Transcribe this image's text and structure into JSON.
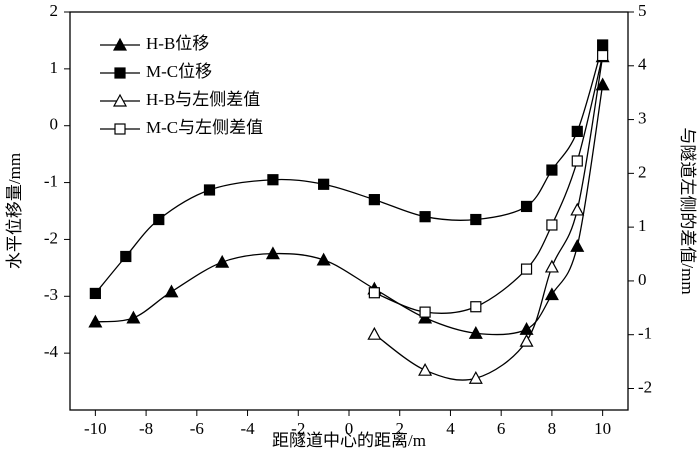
{
  "chart_data": {
    "type": "line",
    "xlabel": "距隧道中心的距离/m",
    "ylabel": "水平位移量/mm",
    "y2label": "与隧道左侧的差值/mm",
    "xlim": [
      -11,
      11
    ],
    "xticks": [
      -10,
      -8,
      -6,
      -4,
      -2,
      0,
      2,
      4,
      6,
      8,
      10
    ],
    "ylim": [
      -5,
      2
    ],
    "yticks": [
      -4,
      -3,
      -2,
      -1,
      0,
      1,
      2
    ],
    "y2lim": [
      -2.4,
      5
    ],
    "y2ticks": [
      -2,
      -1,
      0,
      1,
      2,
      3,
      4,
      5
    ],
    "legend": "upper left",
    "color": "#000000",
    "series": [
      {
        "name": "H-B位移",
        "marker": "triangle",
        "filled": true,
        "x": [
          -10,
          -8.5,
          -7,
          -5,
          -3,
          -1,
          1,
          3,
          5,
          7,
          8,
          9,
          10
        ],
        "values": [
          -3.45,
          -3.38,
          -2.92,
          -2.4,
          -2.25,
          -2.36,
          -2.87,
          -3.38,
          -3.65,
          -3.58,
          -2.97,
          -2.12,
          0.72
        ]
      },
      {
        "name": "M-C位移",
        "marker": "square",
        "filled": true,
        "x": [
          -10,
          -8.8,
          -7.5,
          -5.5,
          -3,
          -1,
          1,
          3,
          5,
          7,
          8,
          9,
          10
        ],
        "values": [
          -2.95,
          -2.3,
          -1.65,
          -1.13,
          -0.95,
          -1.03,
          -1.3,
          -1.6,
          -1.65,
          -1.42,
          -0.78,
          -0.1,
          1.42
        ]
      },
      {
        "name": "H-B与左侧差值",
        "marker": "triangle",
        "filled": false,
        "axis": "y2",
        "x": [
          1,
          3,
          5,
          7,
          8,
          9,
          10
        ],
        "values": [
          -0.99,
          -1.66,
          -1.81,
          -1.12,
          0.26,
          1.32,
          4.17
        ]
      },
      {
        "name": "M-C与左侧差值",
        "marker": "square",
        "filled": false,
        "axis": "y2",
        "x": [
          1,
          3,
          5,
          7,
          8,
          9,
          10
        ],
        "values": [
          -0.22,
          -0.58,
          -0.48,
          0.22,
          1.04,
          2.23,
          4.19
        ]
      }
    ]
  }
}
